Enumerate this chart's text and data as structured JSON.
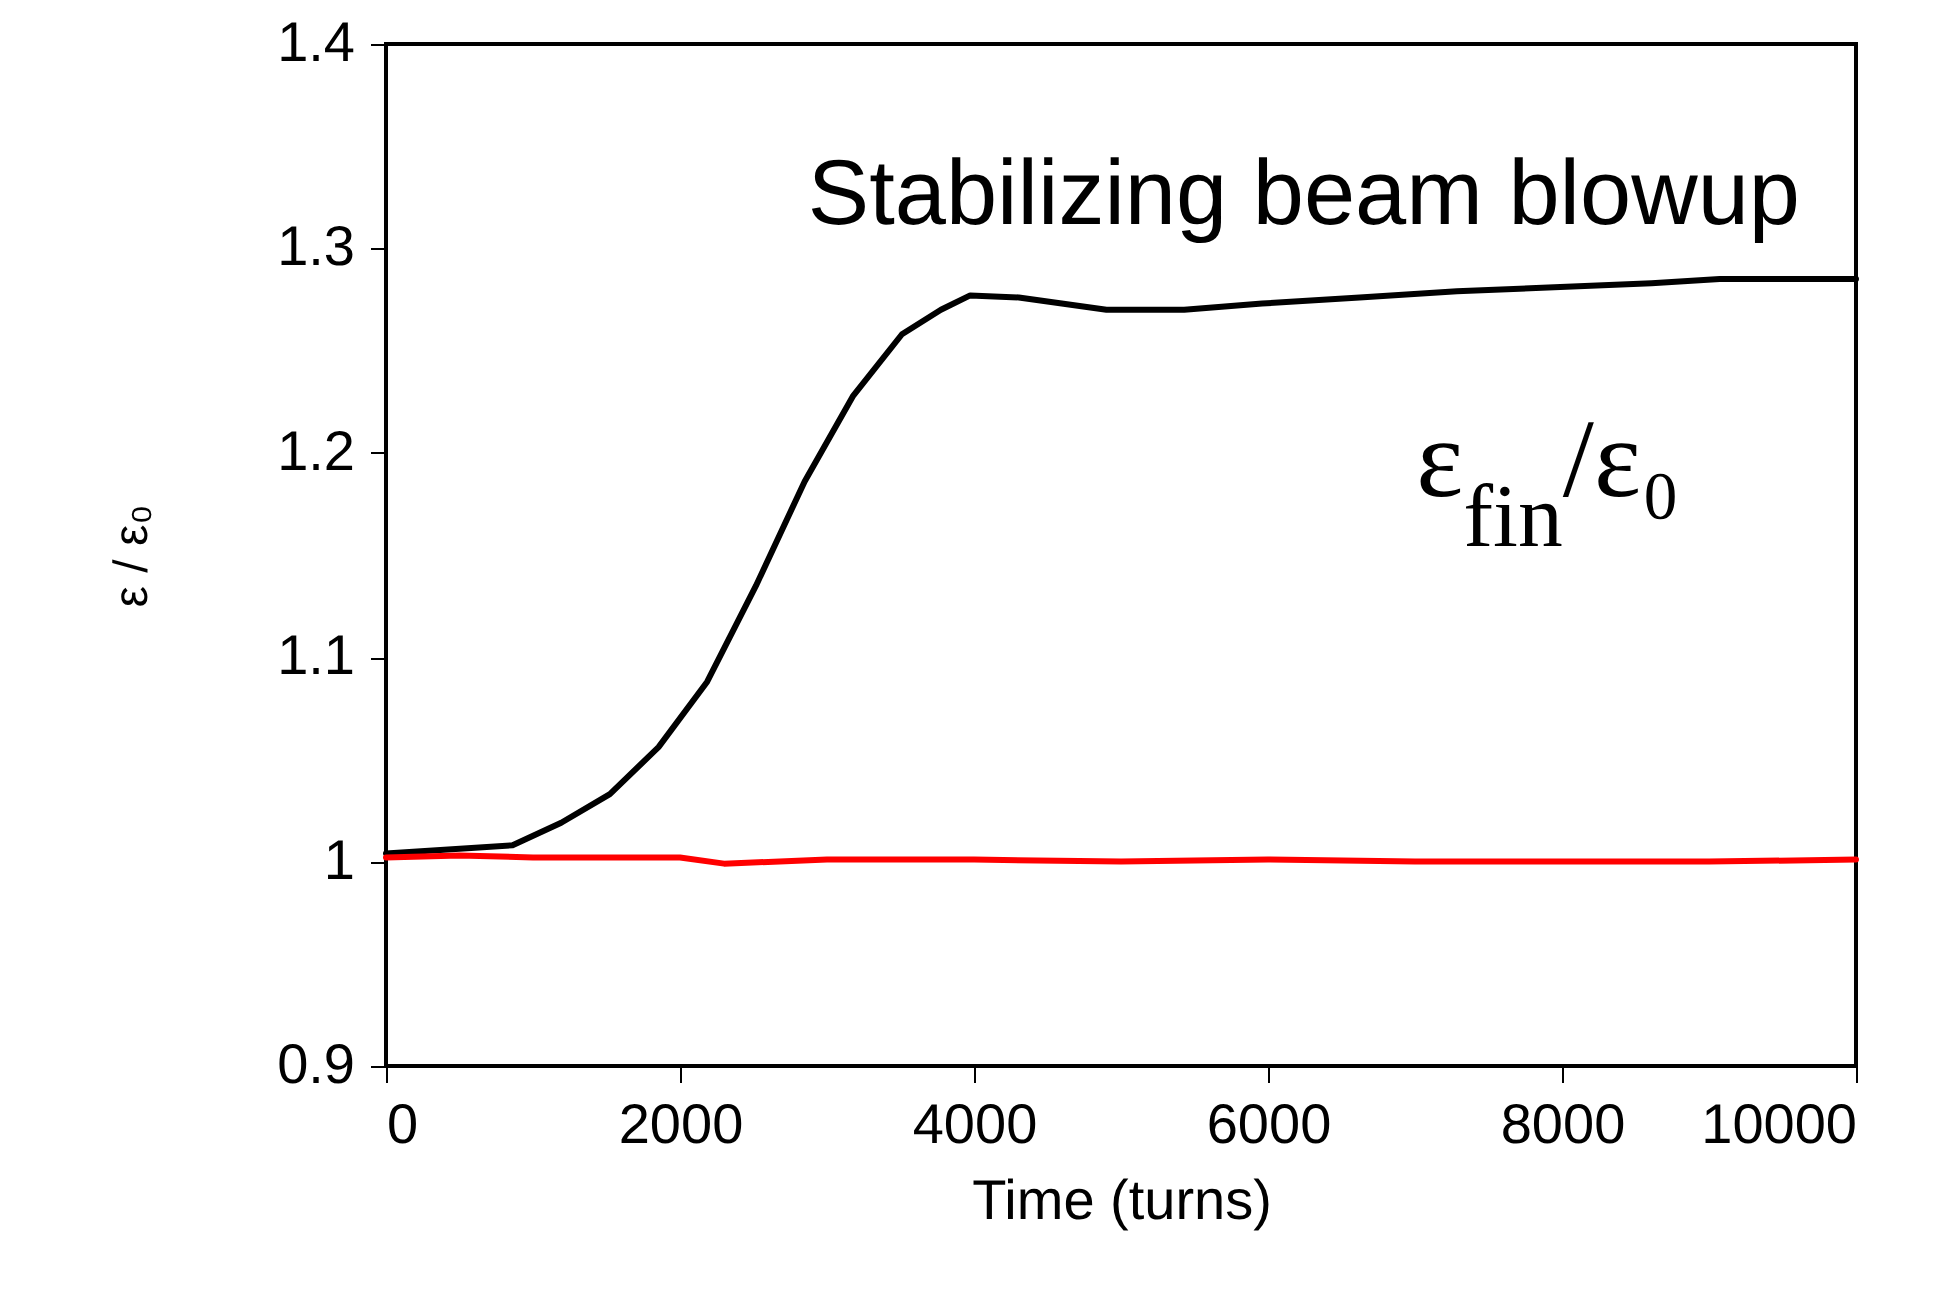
{
  "chart_data": {
    "type": "line",
    "xlabel": "Time (turns)",
    "ylabel": "ε / ε₀",
    "annotations": [
      "Stabilizing beam blowup",
      "ε$_{fin}$/ε₀"
    ],
    "xlim": [
      0,
      10000
    ],
    "xticks": [
      0,
      2000,
      4000,
      6000,
      8000,
      10000
    ],
    "ylim": [
      0.9,
      1.4
    ],
    "yticks": [
      0.9,
      1,
      1.1,
      1.2,
      1.3,
      1.4
    ],
    "grid": false,
    "marker": "none",
    "line_style": "solid",
    "series": [
      {
        "color": "#000000",
        "x": [
          0,
          861,
          1192,
          1523,
          1854,
          2185,
          2517,
          2848,
          3179,
          3510,
          3775,
          3974,
          4305,
          4901,
          5430,
          5960,
          6623,
          7285,
          7947,
          8609,
          9073,
          10000
        ],
        "values": [
          1.004,
          1.008,
          1.019,
          1.033,
          1.056,
          1.088,
          1.135,
          1.186,
          1.228,
          1.258,
          1.27,
          1.277,
          1.276,
          1.27,
          1.27,
          1.273,
          1.276,
          1.279,
          1.281,
          1.283,
          1.285,
          1.285
        ]
      },
      {
        "color": "#ff0000",
        "x": [
          0,
          500,
          1000,
          2000,
          2300,
          3000,
          4000,
          5000,
          6000,
          7000,
          8000,
          9000,
          10000
        ],
        "values": [
          1.002,
          1.003,
          1.002,
          1.002,
          0.999,
          1.001,
          1.001,
          1.0,
          1.001,
          1.0,
          1.0,
          1.0,
          1.001
        ]
      }
    ]
  }
}
